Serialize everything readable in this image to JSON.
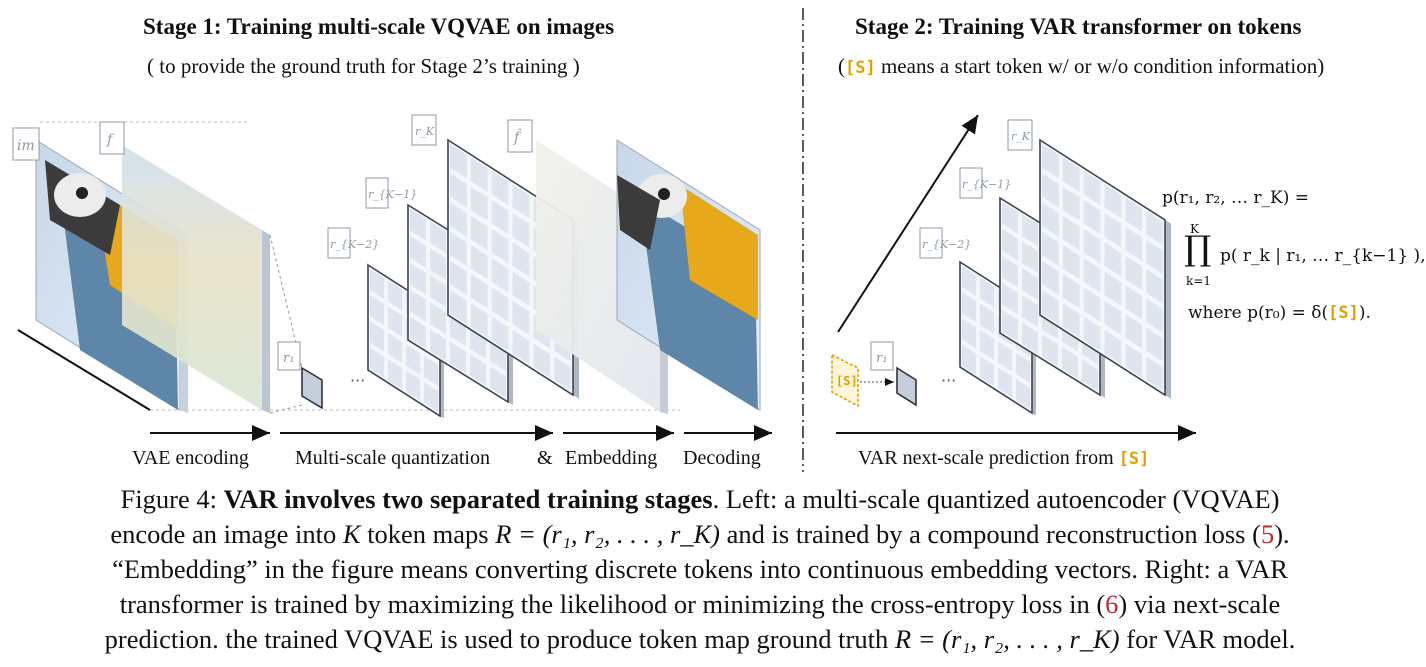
{
  "stage1": {
    "title": "Stage 1:  Training multi-scale VQVAE on images",
    "subtitle": "( to provide the ground truth for Stage 2’s training )"
  },
  "stage2": {
    "title": "Stage 2:  Training VAR transformer on tokens",
    "subtitle_pre": "(",
    "subtitle_token": "[S]",
    "subtitle_post": " means a start token w/ or w/o condition information)"
  },
  "flow": {
    "vae_encoding": "VAE encoding",
    "multi_scale": "Multi-scale quantization",
    "amp": "&",
    "embedding": "Embedding",
    "decoding": "Decoding",
    "var_pred": "VAR next-scale prediction from ",
    "var_token": "[S]"
  },
  "tags": {
    "im": "im",
    "f": "f",
    "f_hat": "f̂",
    "r1": "r₁",
    "rK2": "r_{K−2}",
    "rK1": "r_{K−1}",
    "rK": "r_K",
    "dots": "···",
    "start": "[S]"
  },
  "formula": {
    "line1": "p(r₁, r₂, … r_K) =",
    "prod_top": "K",
    "prod_bot": "k=1",
    "line2": "p( r_k | r₁, … r_{k−1} ),",
    "where": "where  p(r₀) = δ(",
    "where_token": "[S]",
    "where_end": ")."
  },
  "caption": {
    "fig_label": "Figure 4: ",
    "bold": "VAR involves two separated training stages",
    "l1_rest": ". Left: a multi-scale quantized autoencoder (VQVAE)",
    "l2a": "encode an image into ",
    "l2_K": "K",
    "l2b": " token maps ",
    "l2_R": "R = (r₁, r₂, . . . , r_K)",
    "l2c": " and is trained by a compound reconstruction loss (",
    "l2_ref": "5",
    "l2d": ").",
    "l3": "“Embedding” in the figure means converting discrete tokens into continuous embedding vectors. Right: a VAR",
    "l4a": "transformer is trained by maximizing the likelihood or minimizing the cross-entropy loss in (",
    "l4_ref": "6",
    "l4b": ") via next-scale",
    "l5a": "prediction. the trained VQVAE is used to produce token map ground truth ",
    "l5_R": "R = (r₁, r₂, . . . , r_K)",
    "l5b": " for VAR model."
  },
  "colors": {
    "grid_fill": "#dfe5ef",
    "grid_line": "#3c4452",
    "token_accent": "#e0a000",
    "ref_red": "#c0282b"
  }
}
